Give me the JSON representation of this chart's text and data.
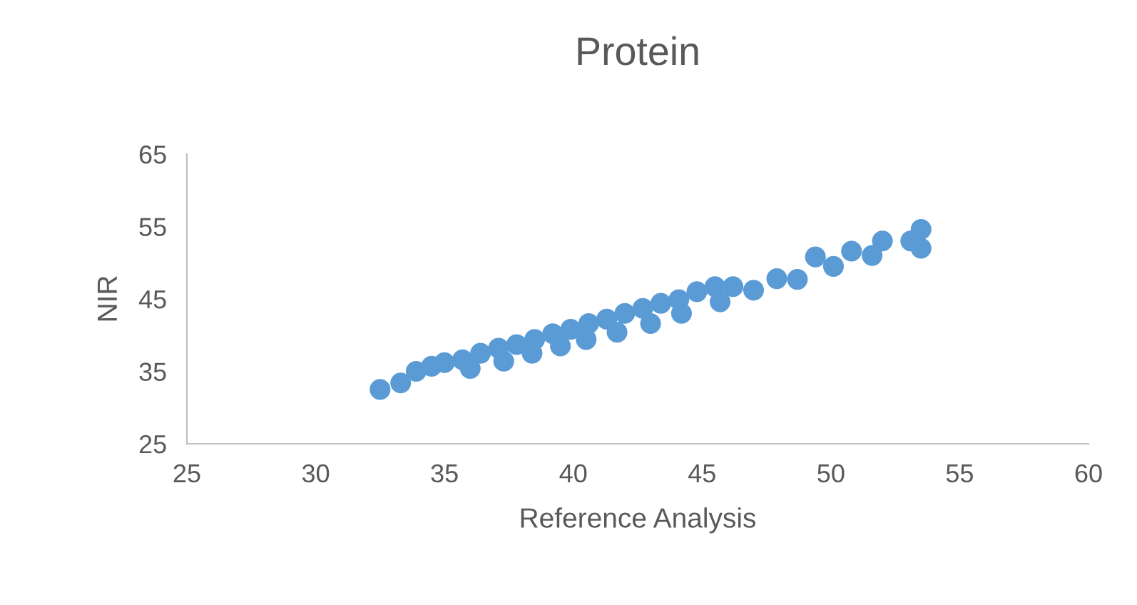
{
  "chart_data": {
    "type": "scatter",
    "title": "Protein",
    "xlabel": "Reference Analysis",
    "ylabel": "NIR",
    "x": [
      32.5,
      33.3,
      33.9,
      34.5,
      35.0,
      35.7,
      36.4,
      37.1,
      37.8,
      38.5,
      39.2,
      39.9,
      40.6,
      41.3,
      42.0,
      42.7,
      43.4,
      44.1,
      44.8,
      45.5,
      46.2,
      47.0,
      47.9,
      48.7,
      49.4,
      50.1,
      50.8,
      51.6,
      52.0,
      53.1,
      53.5,
      53.5,
      36.0,
      37.3,
      38.4,
      39.5,
      40.5,
      41.7,
      43.0,
      44.2,
      45.7
    ],
    "series": [
      {
        "color": "#5b9bd5",
        "values": [
          32.5,
          33.4,
          35.0,
          35.7,
          36.2,
          36.6,
          37.5,
          38.2,
          38.7,
          39.4,
          40.2,
          40.8,
          41.6,
          42.2,
          43.0,
          43.7,
          44.4,
          44.9,
          46.0,
          46.7,
          46.7,
          46.2,
          47.8,
          47.7,
          50.8,
          49.5,
          51.6,
          51.0,
          53.0,
          53.0,
          54.6,
          52.0,
          35.4,
          36.4,
          37.5,
          38.5,
          39.4,
          40.4,
          41.6,
          43.0,
          44.6
        ]
      }
    ],
    "xlim": [
      25,
      60
    ],
    "xticks": [
      25,
      30,
      35,
      40,
      45,
      50,
      55,
      60
    ],
    "ylim": [
      25,
      65
    ],
    "yticks": [
      25,
      35,
      45,
      55,
      65
    ],
    "marker": "circle",
    "grid": false,
    "legend": false
  }
}
